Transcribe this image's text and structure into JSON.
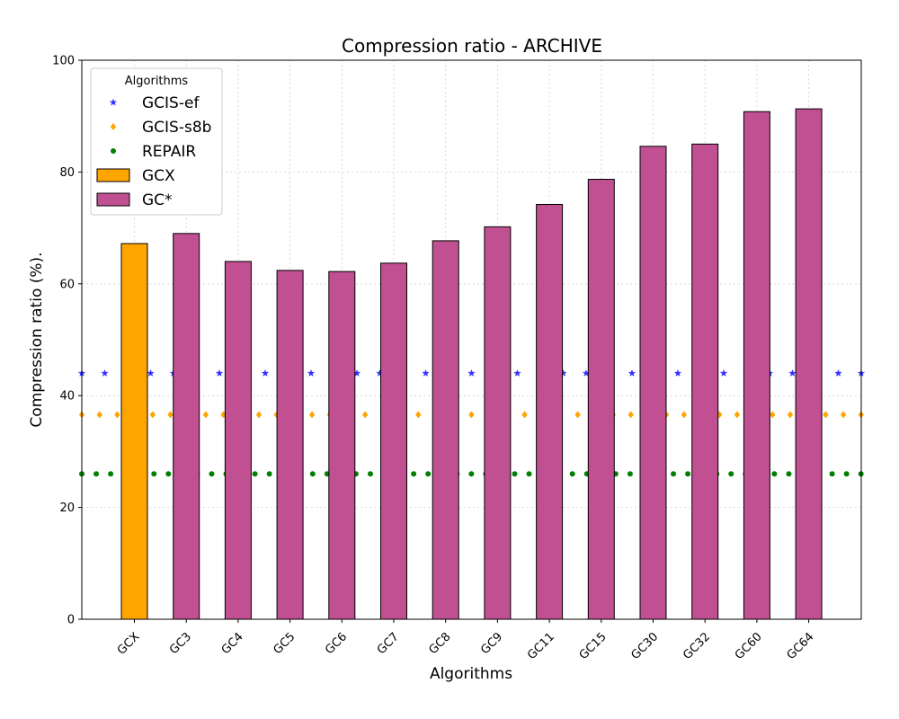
{
  "chart_data": {
    "type": "bar",
    "title": "Compression ratio -  ARCHIVE",
    "xlabel": "Algorithms",
    "ylabel": "Compression ratio (%).",
    "ylim": [
      0,
      100
    ],
    "yticks": [
      0,
      20,
      40,
      60,
      80,
      100
    ],
    "grid": true,
    "categories": [
      "GCX",
      "GC3",
      "GC4",
      "GC5",
      "GC6",
      "GC7",
      "GC8",
      "GC9",
      "GC11",
      "GC15",
      "GC30",
      "GC32",
      "GC60",
      "GC64"
    ],
    "bar_series": [
      {
        "name": "GCX",
        "color": "#ffa500",
        "categories": [
          "GCX"
        ],
        "values": [
          67.2
        ]
      },
      {
        "name": "GC*",
        "color": "#c05092",
        "categories": [
          "GC3",
          "GC4",
          "GC5",
          "GC6",
          "GC7",
          "GC8",
          "GC9",
          "GC11",
          "GC15",
          "GC30",
          "GC32",
          "GC60",
          "GC64"
        ],
        "values": [
          69.0,
          64.0,
          62.4,
          62.2,
          63.7,
          67.7,
          70.2,
          74.2,
          78.7,
          84.6,
          85.0,
          90.8,
          91.3
        ]
      }
    ],
    "reference_lines": [
      {
        "name": "GCIS-ef",
        "value": 44.0,
        "color": "#3333ff",
        "marker": "star"
      },
      {
        "name": "GCIS-s8b",
        "value": 36.6,
        "color": "#ffa500",
        "marker": "diamond"
      },
      {
        "name": "REPAIR",
        "value": 26.0,
        "color": "#008000",
        "marker": "circle"
      }
    ],
    "legend": {
      "title": "Algorithms",
      "placement": "top-left",
      "entries": [
        "GCIS-ef",
        "GCIS-s8b",
        "REPAIR",
        "GCX",
        "GC*"
      ]
    }
  }
}
